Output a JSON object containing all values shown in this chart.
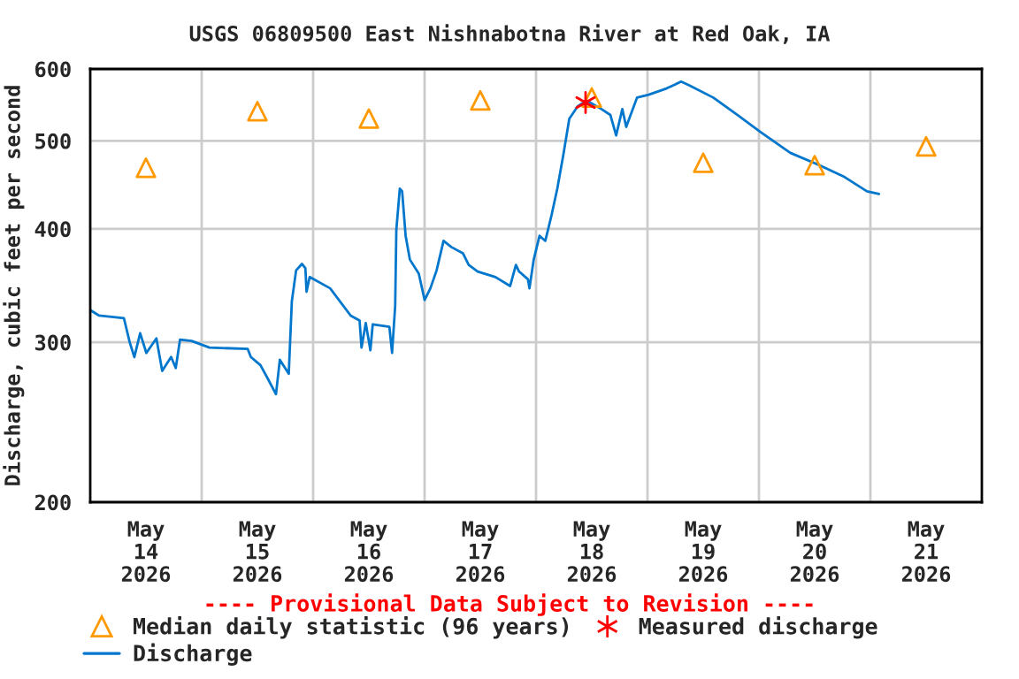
{
  "chart_data": {
    "type": "line",
    "title": "USGS 06809500 East Nishnabotna River at Red Oak, IA",
    "ylabel": "Discharge, cubic feet per second",
    "annotations": [
      "---- Provisional Data Subject to Revision ----"
    ],
    "log": true,
    "grid": true,
    "legend": "bottom",
    "xlim": [
      "2026-05-14T00:00",
      "2026-05-22T00:00"
    ],
    "xticks": [
      {
        "value": "2026-05-14T12:00",
        "label": "May\n14\n2026"
      },
      {
        "value": "2026-05-15T00:00",
        "label": null
      },
      {
        "value": "2026-05-15T12:00",
        "label": "May\n15\n2026"
      },
      {
        "value": "2026-05-16T00:00",
        "label": null
      },
      {
        "value": "2026-05-16T12:00",
        "label": "May\n16\n2026"
      },
      {
        "value": "2026-05-17T00:00",
        "label": null
      },
      {
        "value": "2026-05-17T12:00",
        "label": "May\n17\n2026"
      },
      {
        "value": "2026-05-18T00:00",
        "label": null
      },
      {
        "value": "2026-05-18T12:00",
        "label": "May\n18\n2026"
      },
      {
        "value": "2026-05-19T00:00",
        "label": null
      },
      {
        "value": "2026-05-19T12:00",
        "label": "May\n19\n2026"
      },
      {
        "value": "2026-05-20T00:00",
        "label": null
      },
      {
        "value": "2026-05-20T12:00",
        "label": "May\n20\n2026"
      },
      {
        "value": "2026-05-21T00:00",
        "label": null
      },
      {
        "value": "2026-05-21T12:00",
        "label": "May\n21\n2026"
      }
    ],
    "ylim": [
      200,
      600
    ],
    "yticks": [
      200,
      300,
      400,
      500,
      600
    ],
    "series": [
      {
        "name": "Median daily statistic (96 years)",
        "type": "scatter",
        "marker": "triangle",
        "color": "#ff9900",
        "x": [
          "2026-05-14T12:00",
          "2026-05-15T12:00",
          "2026-05-16T12:00",
          "2026-05-17T12:00",
          "2026-05-18T12:00",
          "2026-05-19T12:00",
          "2026-05-20T12:00",
          "2026-05-21T12:00"
        ],
        "values": [
          467,
          539,
          529,
          554,
          558,
          473,
          470,
          493
        ]
      },
      {
        "name": "Measured discharge",
        "type": "scatter",
        "marker": "cross",
        "color": "#ff0000",
        "x": [
          "2026-05-18T10:40"
        ],
        "values": [
          551
        ]
      },
      {
        "name": "Discharge",
        "marker": "none",
        "color": "#0077cc",
        "x": [
          "2026-05-14T00:15",
          "2026-05-14T01:55",
          "2026-05-14T07:15",
          "2026-05-14T08:30",
          "2026-05-14T09:30",
          "2026-05-14T10:45",
          "2026-05-14T12:05",
          "2026-05-14T14:15",
          "2026-05-14T15:30",
          "2026-05-14T17:25",
          "2026-05-14T18:25",
          "2026-05-14T19:20",
          "2026-05-14T21:50",
          "2026-05-15T01:40",
          "2026-05-15T09:55",
          "2026-05-15T10:35",
          "2026-05-15T12:40",
          "2026-05-15T14:20",
          "2026-05-15T16:00",
          "2026-05-15T16:50",
          "2026-05-15T18:45",
          "2026-05-15T19:25",
          "2026-05-15T20:20",
          "2026-05-15T21:35",
          "2026-05-15T22:20",
          "2026-05-15T22:35",
          "2026-05-15T23:15",
          "2026-05-16T03:40",
          "2026-05-16T08:05",
          "2026-05-16T10:00",
          "2026-05-16T10:25",
          "2026-05-16T11:20",
          "2026-05-16T12:20",
          "2026-05-16T12:50",
          "2026-05-16T16:25",
          "2026-05-16T17:00",
          "2026-05-16T17:40",
          "2026-05-16T17:55",
          "2026-05-16T18:40",
          "2026-05-16T19:10",
          "2026-05-16T19:55",
          "2026-05-16T20:50",
          "2026-05-16T22:45",
          "2026-05-17T00:00",
          "2026-05-17T01:15",
          "2026-05-17T02:35",
          "2026-05-17T04:05",
          "2026-05-17T05:45",
          "2026-05-17T08:15",
          "2026-05-17T09:30",
          "2026-05-17T11:25",
          "2026-05-17T15:15",
          "2026-05-17T18:25",
          "2026-05-17T19:40",
          "2026-05-17T20:20",
          "2026-05-17T22:15",
          "2026-05-17T22:35",
          "2026-05-17T23:30",
          "2026-05-18T00:45",
          "2026-05-18T02:00",
          "2026-05-18T03:20",
          "2026-05-18T04:35",
          "2026-05-18T05:50",
          "2026-05-18T07:10",
          "2026-05-18T09:00",
          "2026-05-18T10:55",
          "2026-05-18T14:05",
          "2026-05-18T16:00",
          "2026-05-18T17:15",
          "2026-05-18T18:35",
          "2026-05-18T19:25",
          "2026-05-18T21:45",
          "2026-05-19T00:15",
          "2026-05-19T04:05",
          "2026-05-19T07:15",
          "2026-05-19T09:10",
          "2026-05-19T14:10",
          "2026-05-19T19:20",
          "2026-05-20T00:25",
          "2026-05-20T06:45",
          "2026-05-20T13:05",
          "2026-05-20T18:10",
          "2026-05-20T23:15",
          "2026-05-21T01:50"
        ],
        "values": [
          325,
          321,
          319,
          300,
          289,
          307,
          292,
          303,
          279,
          289,
          281,
          302,
          301,
          296,
          295,
          289,
          283,
          273,
          263,
          287,
          277,
          333,
          360,
          366,
          362,
          341,
          354,
          344,
          321,
          317,
          296,
          315,
          294,
          314,
          312,
          292,
          329,
          399,
          443,
          440,
          393,
          370,
          357,
          334,
          344,
          360,
          388,
          382,
          376,
          365,
          359,
          354,
          346,
          365,
          359,
          352,
          344,
          370,
          393,
          388,
          414,
          443,
          481,
          529,
          546,
          554,
          542,
          534,
          507,
          542,
          518,
          558,
          562,
          571,
          581,
          575,
          558,
          534,
          511,
          485,
          470,
          457,
          440,
          437
        ]
      }
    ]
  }
}
